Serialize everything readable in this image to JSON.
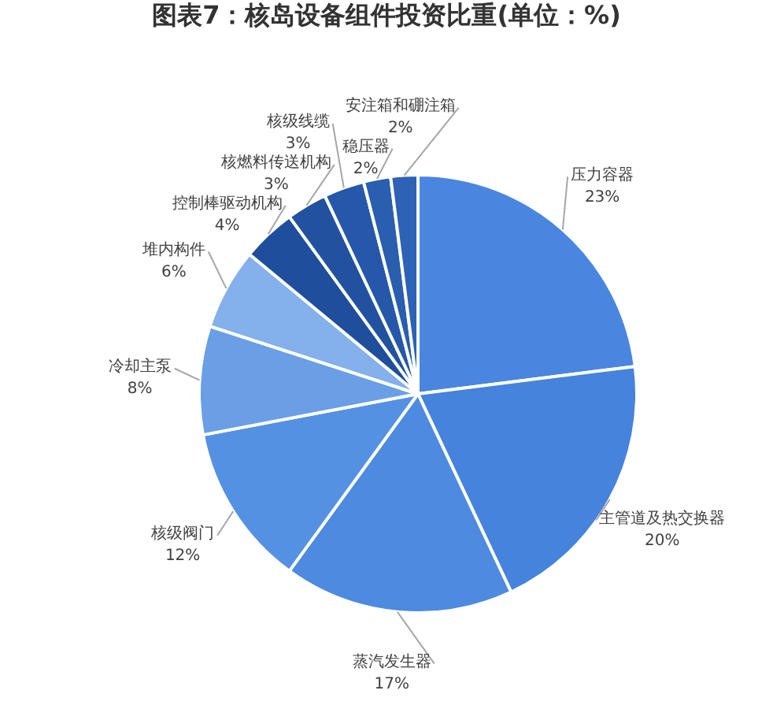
{
  "chart_data": {
    "type": "pie",
    "title": "图表7：核岛设备组件投资比重(单位：%)",
    "categories": [
      "压力容器",
      "主管道及热交换器",
      "蒸汽发生器",
      "核级阀门",
      "冷却主泵",
      "堆内构件",
      "控制棒驱动机构",
      "核燃料传送机构",
      "核级线缆",
      "稳压器",
      "安注箱和硼注箱"
    ],
    "values": [
      23,
      20,
      17,
      12,
      8,
      6,
      4,
      3,
      3,
      2,
      2
    ],
    "colors": [
      "#4a86e0",
      "#4583dc",
      "#4d8ae0",
      "#5591e3",
      "#6a9fe6",
      "#84b0ec",
      "#1f4f9c",
      "#22529f",
      "#2558a8",
      "#2a5eae",
      "#2d62b5"
    ],
    "value_labels": [
      "23%",
      "20%",
      "17%",
      "12%",
      "8%",
      "6%",
      "4%",
      "3%",
      "3%",
      "2%",
      "2%"
    ]
  }
}
